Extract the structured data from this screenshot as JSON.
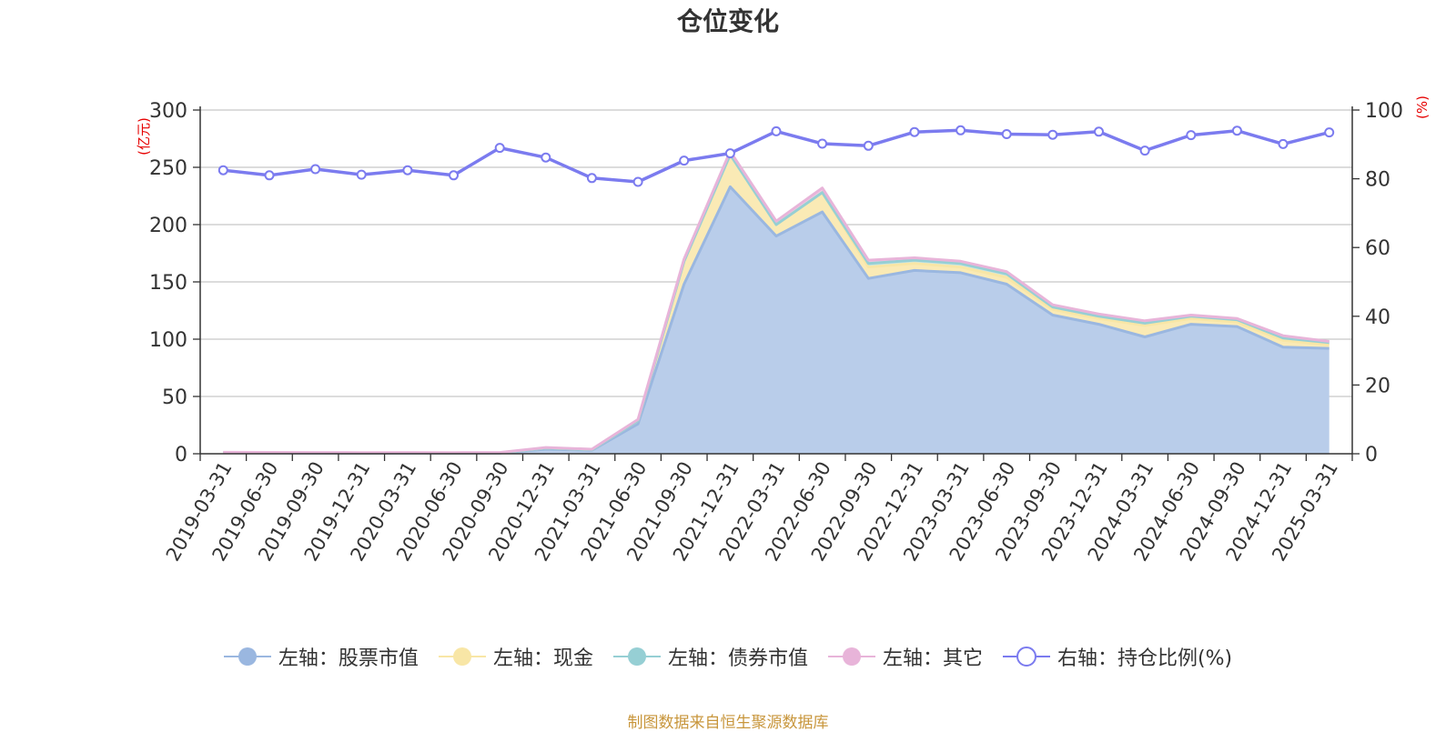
{
  "chart_data": {
    "type": "area",
    "title": "仓位变化",
    "left_unit": "(亿元)",
    "right_unit": "(%)",
    "left_ylim": [
      0,
      300
    ],
    "left_ticks": [
      "0",
      "50",
      "100",
      "150",
      "200",
      "250",
      "300"
    ],
    "right_ylim": [
      0,
      100
    ],
    "right_ticks": [
      "0",
      "20",
      "40",
      "60",
      "80",
      "100"
    ],
    "grid": true,
    "legend_position": "bottom",
    "categories": [
      "2019-03-31",
      "2019-06-30",
      "2019-09-30",
      "2019-12-31",
      "2020-03-31",
      "2020-06-30",
      "2020-09-30",
      "2020-12-31",
      "2021-03-31",
      "2021-06-30",
      "2021-09-30",
      "2021-12-31",
      "2022-03-31",
      "2022-06-30",
      "2022-09-30",
      "2022-12-31",
      "2023-03-31",
      "2023-06-30",
      "2023-09-30",
      "2023-12-31",
      "2024-03-31",
      "2024-06-30",
      "2024-09-30",
      "2024-12-31",
      "2025-03-31"
    ],
    "stacked_series": [
      {
        "name": "左轴：股票市值",
        "color": "#9ab7e0",
        "fill": "#b9cdea",
        "values": [
          0.8,
          0.7,
          0.6,
          0.5,
          0.6,
          0.5,
          0.6,
          4,
          3,
          26,
          148,
          233,
          190,
          211,
          153,
          160,
          158,
          148,
          121,
          113,
          102,
          113,
          111,
          93,
          92
        ]
      },
      {
        "name": "左轴：现金",
        "color": "#f8e6a6",
        "fill": "#faeab5",
        "values": [
          0.2,
          0.2,
          0.2,
          0.2,
          0.2,
          0.2,
          0.2,
          1,
          0.5,
          3,
          20,
          28,
          10,
          17,
          10,
          6,
          5,
          6,
          5,
          5,
          10,
          5,
          4,
          6,
          3
        ]
      },
      {
        "name": "左轴：债券市值",
        "color": "#96cfd4",
        "fill": "#c5e6e8",
        "values": [
          0,
          0,
          0,
          0,
          0,
          0,
          0,
          0,
          0,
          0,
          0,
          0,
          0,
          0,
          3,
          3,
          3,
          3,
          2,
          2,
          2,
          2,
          2,
          2,
          2
        ]
      },
      {
        "name": "左轴：其它",
        "color": "#e8b4d9",
        "fill": "#f0cde6",
        "values": [
          0.3,
          0.3,
          0.3,
          0.3,
          0.3,
          0.3,
          0.3,
          0.5,
          0.5,
          1,
          2,
          3,
          3,
          4,
          3,
          2,
          2,
          2,
          2,
          2,
          2,
          1,
          1,
          2,
          1
        ]
      }
    ],
    "line_series": {
      "name": "右轴：持仓比例(%)",
      "color": "#7b7bef",
      "values": [
        82.5,
        81,
        82.8,
        81.2,
        82.5,
        81,
        89,
        86.2,
        80.2,
        79.1,
        85.3,
        87.4,
        93.8,
        90.2,
        89.6,
        93.6,
        94.1,
        93,
        92.8,
        93.7,
        88.2,
        92.7,
        94,
        90.1,
        93.5
      ]
    }
  },
  "legend": [
    {
      "label": "左轴：股票市值",
      "color": "#9ab7e0",
      "shape": "filled"
    },
    {
      "label": "左轴：现金",
      "color": "#f8e6a6",
      "shape": "filled"
    },
    {
      "label": "左轴：债券市值",
      "color": "#96cfd4",
      "shape": "filled"
    },
    {
      "label": "左轴：其它",
      "color": "#e8b4d9",
      "shape": "filled"
    },
    {
      "label": "右轴：持仓比例(%)",
      "color": "#7b7bef",
      "shape": "hollow"
    }
  ],
  "footer": "制图数据来自恒生聚源数据库"
}
